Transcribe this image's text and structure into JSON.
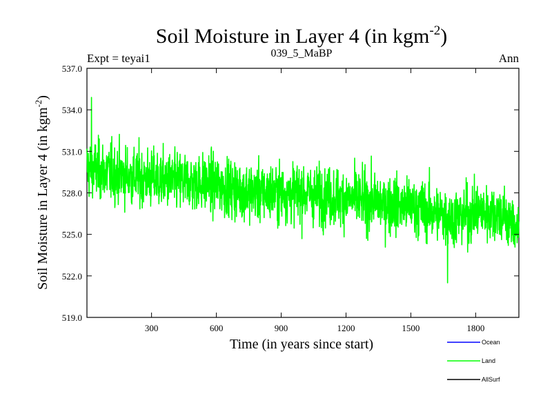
{
  "header": {
    "title_main": "Soil Moisture in Layer 4 (in kgm",
    "title_sup": "-2",
    "title_close": ")",
    "expt": "Expt = teyai1",
    "run": "039_5_MaBP",
    "period": "Ann"
  },
  "chart_data": {
    "type": "line",
    "title": "Soil Moisture in Layer 4 (in kgm-2)",
    "xlabel": "Time (in years since start)",
    "ylabel": "Soil Moisture in Layer 4 (in kgm-2)",
    "ylabel_main": "Soil Moisture in Layer 4 (in kgm",
    "ylabel_sup": "-2",
    "ylabel_close": ")",
    "xlim": [
      1,
      2000
    ],
    "ylim": [
      519.0,
      537.0
    ],
    "x_ticks": [
      300,
      600,
      900,
      1200,
      1500,
      1800
    ],
    "x_tick_labels": [
      "300",
      "600",
      "900",
      "1200",
      "1500",
      "1800"
    ],
    "y_ticks": [
      519.0,
      522.0,
      525.0,
      528.0,
      531.0,
      534.0,
      537.0
    ],
    "y_tick_labels": [
      "519.0",
      "522.0",
      "525.0",
      "528.0",
      "531.0",
      "534.0",
      "537.0"
    ],
    "legend": [
      {
        "name": "Ocean",
        "color": "#0000ff"
      },
      {
        "name": "Land",
        "color": "#00ff00"
      },
      {
        "name": "AllSurf",
        "color": "#000000"
      }
    ],
    "series": [
      {
        "name": "Land",
        "color": "#00ff00",
        "sample_years": [
          1,
          100,
          200,
          300,
          400,
          500,
          600,
          700,
          800,
          900,
          1000,
          1100,
          1200,
          1300,
          1400,
          1500,
          1600,
          1700,
          1800,
          1900,
          2000
        ],
        "sample_means": [
          529.8,
          529.5,
          529.2,
          529.0,
          528.8,
          528.8,
          528.6,
          528.2,
          528.0,
          528.0,
          528.0,
          527.8,
          527.6,
          527.4,
          527.2,
          527.0,
          526.6,
          526.2,
          526.6,
          526.6,
          525.4
        ],
        "variability_sd": 1.45,
        "min": 521.5,
        "max": 534.9,
        "min_year": 1670,
        "max_year": 22
      }
    ]
  }
}
